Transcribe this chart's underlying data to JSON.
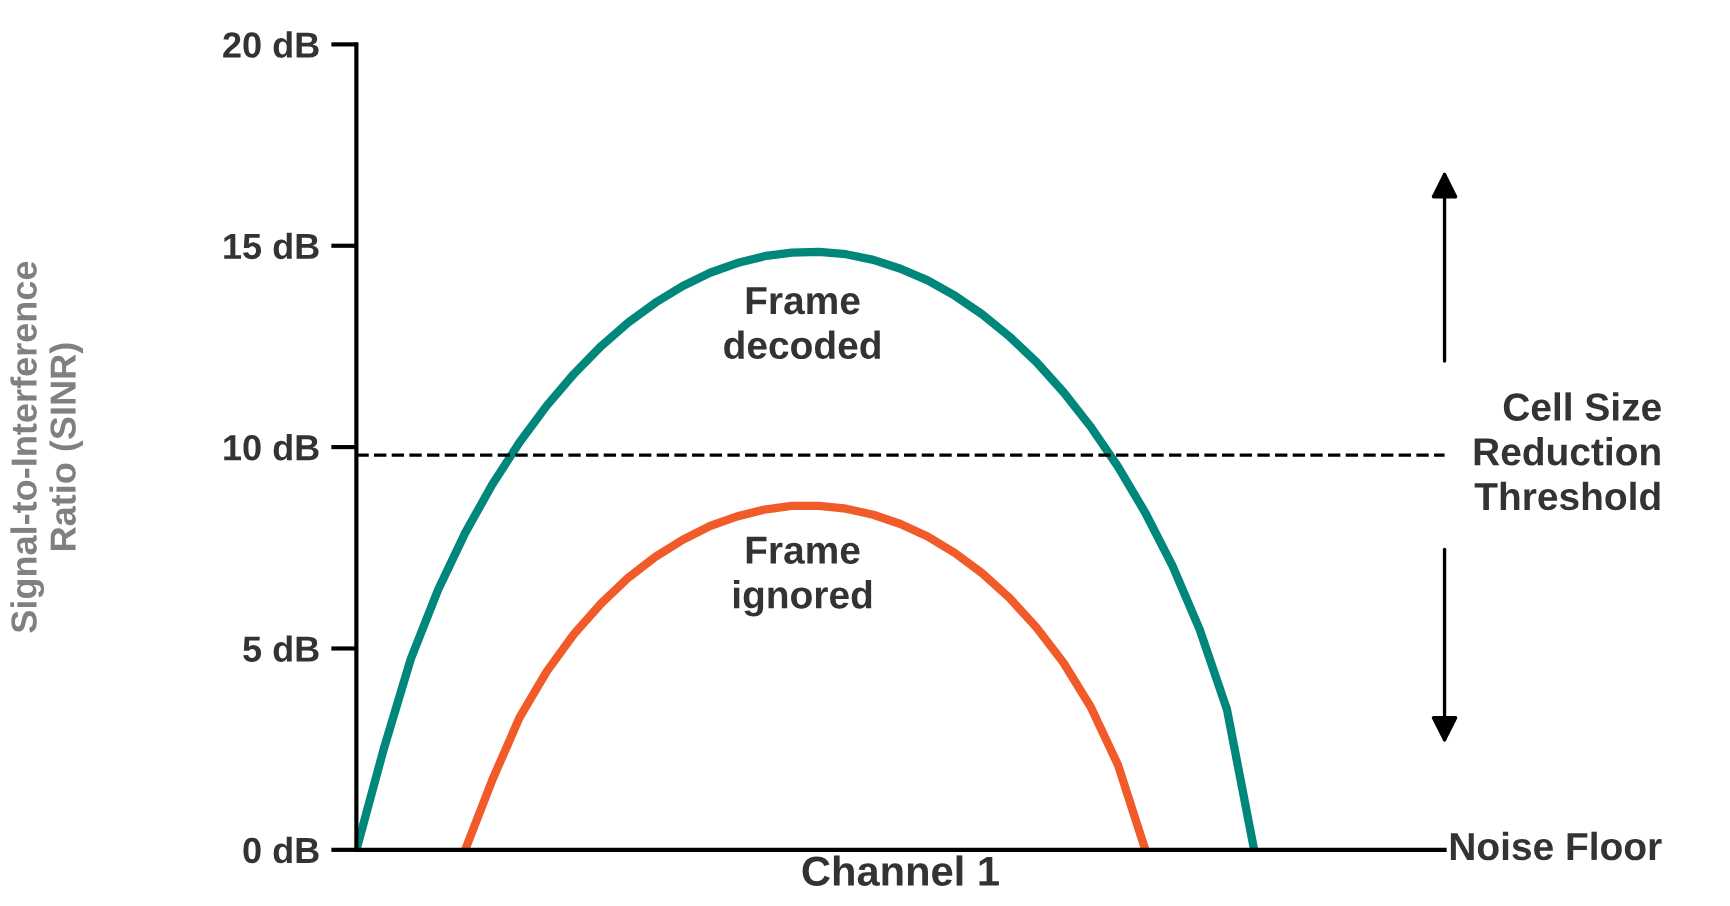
{
  "chart_data": {
    "type": "line",
    "ylabel": "Signal-to-Interference\nRatio (SINR)",
    "xlabel": "Channel 1",
    "categories": [
      null,
      null,
      null,
      null,
      null,
      null,
      null,
      null,
      null,
      null,
      null,
      null,
      null,
      null,
      null,
      null,
      null,
      null,
      null,
      null,
      null,
      null,
      null,
      null,
      null,
      null,
      null,
      null,
      null,
      null,
      null,
      null,
      null,
      null,
      null,
      null,
      null,
      null,
      null,
      null,
      null
    ],
    "series": [
      {
        "color": "#00877b",
        "values": [
          0,
          2.49,
          4.74,
          6.45,
          7.87,
          9.08,
          10.12,
          11.03,
          11.82,
          12.51,
          13.1,
          13.59,
          14.0,
          14.33,
          14.57,
          14.74,
          14.83,
          14.85,
          14.79,
          14.65,
          14.43,
          14.14,
          13.76,
          13.3,
          12.75,
          12.11,
          11.36,
          10.5,
          9.51,
          8.37,
          7.05,
          5.47,
          3.49,
          0,
          null,
          null,
          null,
          null,
          null,
          null,
          null
        ]
      },
      {
        "color": "#f15a29",
        "values": [
          null,
          null,
          null,
          null,
          0,
          1.74,
          3.29,
          4.43,
          5.36,
          6.12,
          6.76,
          7.28,
          7.7,
          8.04,
          8.28,
          8.45,
          8.54,
          8.54,
          8.47,
          8.32,
          8.09,
          7.78,
          7.37,
          6.87,
          6.26,
          5.52,
          4.64,
          3.54,
          2.1,
          0,
          null,
          null,
          null,
          null,
          null,
          null,
          null,
          null,
          null,
          null,
          null
        ]
      }
    ],
    "ylim": [
      0,
      20
    ],
    "yticks": [
      {
        "value": 0,
        "label": "0 dB"
      },
      {
        "value": 5,
        "label": "5 dB"
      },
      {
        "value": 10,
        "label": "10 dB"
      },
      {
        "value": 15,
        "label": "15 dB"
      },
      {
        "value": 20,
        "label": "20 dB"
      }
    ],
    "ref_lines": [
      {
        "axis": "y",
        "value": 9.8,
        "label": "Cell Size\nReduction\nThreshold",
        "color": "#000000",
        "line_style": "dashed"
      }
    ],
    "annotations": [
      "Frame\ndecoded",
      "Frame\nignored",
      "Noise Floor"
    ],
    "tick_labels": "y",
    "grid": false,
    "legend": false,
    "line_style": "solid",
    "marker": "none"
  }
}
